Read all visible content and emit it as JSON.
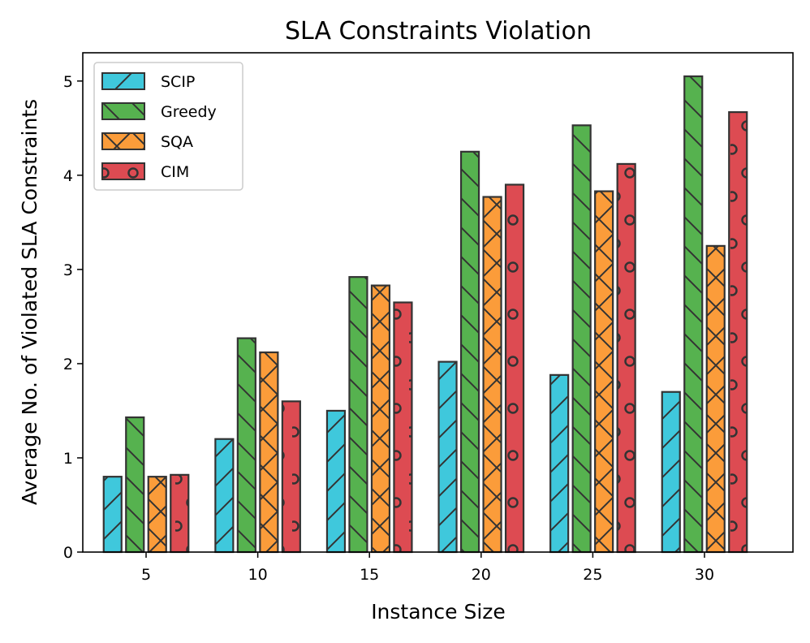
{
  "chart_data": {
    "type": "bar",
    "title": "SLA Constraints Violation",
    "xlabel": "Instance Size",
    "ylabel": "Average No. of Violated SLA Constraints",
    "categories": [
      "5",
      "10",
      "15",
      "20",
      "25",
      "30"
    ],
    "yticks": [
      "0",
      "1",
      "2",
      "3",
      "4",
      "5"
    ],
    "ylim": [
      0,
      5.3
    ],
    "legend_position": "top-left",
    "series": [
      {
        "name": "SCIP",
        "color": "#3fc8dc",
        "hatch": "diagonal",
        "values": [
          0.8,
          1.2,
          1.5,
          2.02,
          1.88,
          1.7
        ]
      },
      {
        "name": "Greedy",
        "color": "#56b24f",
        "hatch": "backslash",
        "values": [
          1.43,
          2.27,
          2.92,
          4.25,
          4.53,
          5.05
        ]
      },
      {
        "name": "SQA",
        "color": "#fb9c3a",
        "hatch": "cross",
        "values": [
          0.8,
          2.12,
          2.83,
          3.77,
          3.83,
          3.25
        ]
      },
      {
        "name": "CIM",
        "color": "#dd4b52",
        "hatch": "circles",
        "values": [
          0.82,
          1.6,
          2.65,
          3.9,
          4.12,
          4.67
        ]
      }
    ]
  }
}
